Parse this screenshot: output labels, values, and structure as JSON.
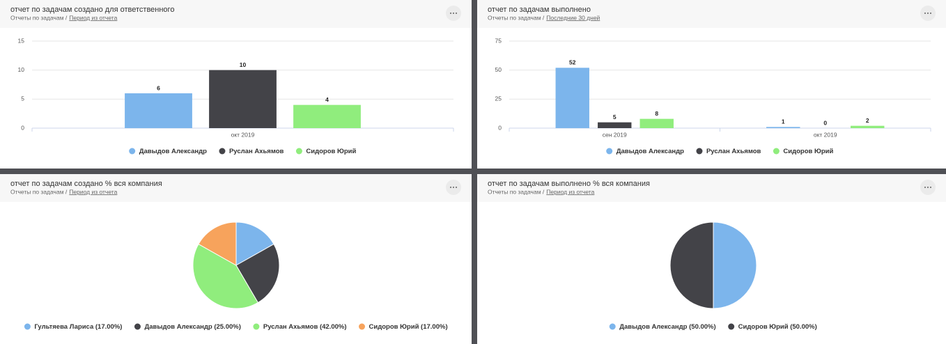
{
  "chart_data": [
    {
      "type": "bar",
      "title": "отчет по задачам создано для ответственного",
      "breadcrumb": "Отчеты по задачам /",
      "period": "Период из отчета",
      "categories": [
        "окт 2019"
      ],
      "series": [
        {
          "name": "Давыдов Александр",
          "color": "#7cb5ec",
          "values": [
            6
          ]
        },
        {
          "name": "Руслан Ахьямов",
          "color": "#434348",
          "values": [
            10
          ]
        },
        {
          "name": "Сидоров Юрий",
          "color": "#90ed7d",
          "values": [
            4
          ]
        }
      ],
      "ylim": [
        0,
        15
      ],
      "yticks": [
        0,
        5,
        10,
        15
      ],
      "grid": true
    },
    {
      "type": "bar",
      "title": "отчет по задачам выполнено",
      "breadcrumb": "Отчеты по задачам /",
      "period": "Последние 30 дней",
      "categories": [
        "сен 2019",
        "окт 2019"
      ],
      "series": [
        {
          "name": "Давыдов Александр",
          "color": "#7cb5ec",
          "values": [
            52,
            1
          ]
        },
        {
          "name": "Руслан Ахьямов",
          "color": "#434348",
          "values": [
            5,
            0
          ]
        },
        {
          "name": "Сидоров Юрий",
          "color": "#90ed7d",
          "values": [
            8,
            2
          ]
        }
      ],
      "ylim": [
        0,
        75
      ],
      "yticks": [
        0,
        25,
        50,
        75
      ],
      "grid": true
    },
    {
      "type": "pie",
      "title": "отчет по задачам создано % вся компания",
      "breadcrumb": "Отчеты по задачам /",
      "period": "Период из отчета",
      "categories": [
        "Гультяева Лариса (17.00%)",
        "Давыдов Александр (25.00%)",
        "Руслан Ахьямов (42.00%)",
        "Сидоров Юрий (17.00%)"
      ],
      "values": [
        17,
        25,
        42,
        17
      ],
      "colors": [
        "#7cb5ec",
        "#434348",
        "#90ed7d",
        "#f7a35c"
      ]
    },
    {
      "type": "pie",
      "title": "отчет по задачам выполнено % вся компания",
      "breadcrumb": "Отчеты по задачам /",
      "period": "Период из отчета",
      "categories": [
        "Давыдов Александр (50.00%)",
        "Сидоров Юрий (50.00%)"
      ],
      "values": [
        50,
        50
      ],
      "colors": [
        "#7cb5ec",
        "#434348"
      ]
    }
  ]
}
